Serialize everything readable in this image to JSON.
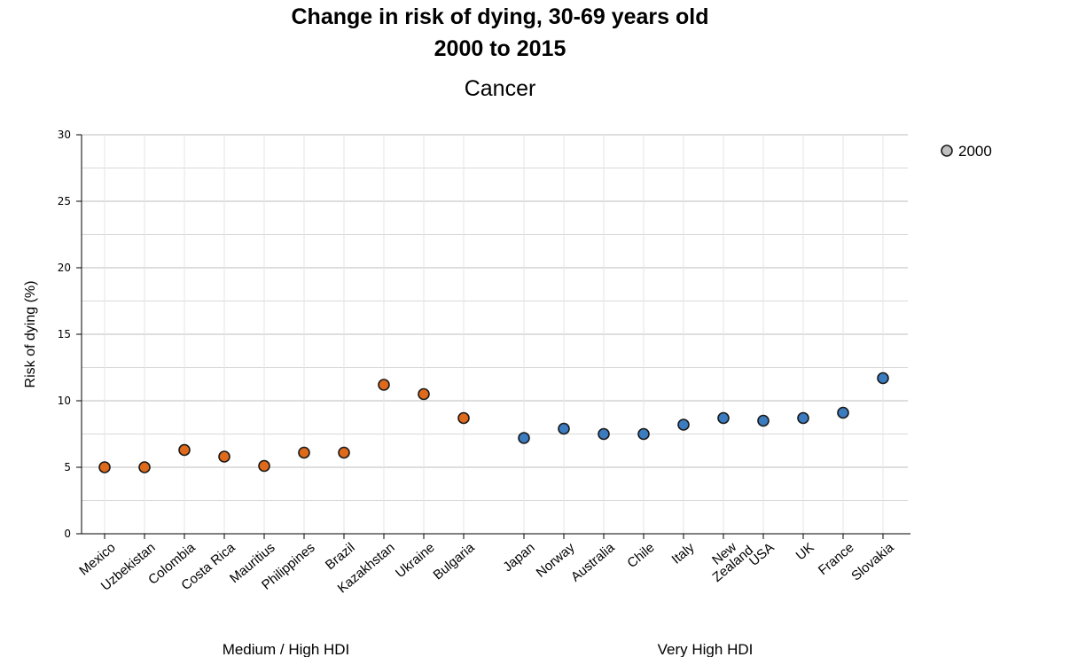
{
  "chart_data": {
    "type": "scatter",
    "title": [
      "Change in risk of dying, 30-69 years old",
      "2000 to 2015"
    ],
    "subtitle": "Cancer",
    "ylabel": "Risk of dying (%)",
    "ylim": [
      0,
      30
    ],
    "yticks": [
      0,
      5,
      10,
      15,
      20,
      25,
      30
    ],
    "grid": true,
    "legend": {
      "placement": "top-right",
      "entries": [
        {
          "label": "2000",
          "color": "#c0c0c0"
        }
      ]
    },
    "colors": {
      "medium_high": "#e06a1b",
      "very_high": "#3b7bbf"
    },
    "groups": [
      {
        "label": "Medium / High HDI",
        "points": [
          {
            "country": "Mexico",
            "value": 5.0
          },
          {
            "country": "Uzbekistan",
            "value": 5.0
          },
          {
            "country": "Colombia",
            "value": 6.3
          },
          {
            "country": "Costa Rica",
            "value": 5.8
          },
          {
            "country": "Mauritius",
            "value": 5.1
          },
          {
            "country": "Philippines",
            "value": 6.1
          },
          {
            "country": "Brazil",
            "value": 6.1
          },
          {
            "country": "Kazakhstan",
            "value": 11.2
          },
          {
            "country": "Ukraine",
            "value": 10.5
          },
          {
            "country": "Bulgaria",
            "value": 8.7
          }
        ]
      },
      {
        "label": "Very High HDI",
        "points": [
          {
            "country": "Japan",
            "value": 7.2
          },
          {
            "country": "Norway",
            "value": 7.9
          },
          {
            "country": "Australia",
            "value": 7.5
          },
          {
            "country": "Chile",
            "value": 7.5
          },
          {
            "country": "Italy",
            "value": 8.2
          },
          {
            "country": "New Zealand",
            "value": 8.7
          },
          {
            "country": "USA",
            "value": 8.5
          },
          {
            "country": "UK",
            "value": 8.7
          },
          {
            "country": "France",
            "value": 9.1
          },
          {
            "country": "Slovakia",
            "value": 11.7
          }
        ]
      }
    ]
  }
}
